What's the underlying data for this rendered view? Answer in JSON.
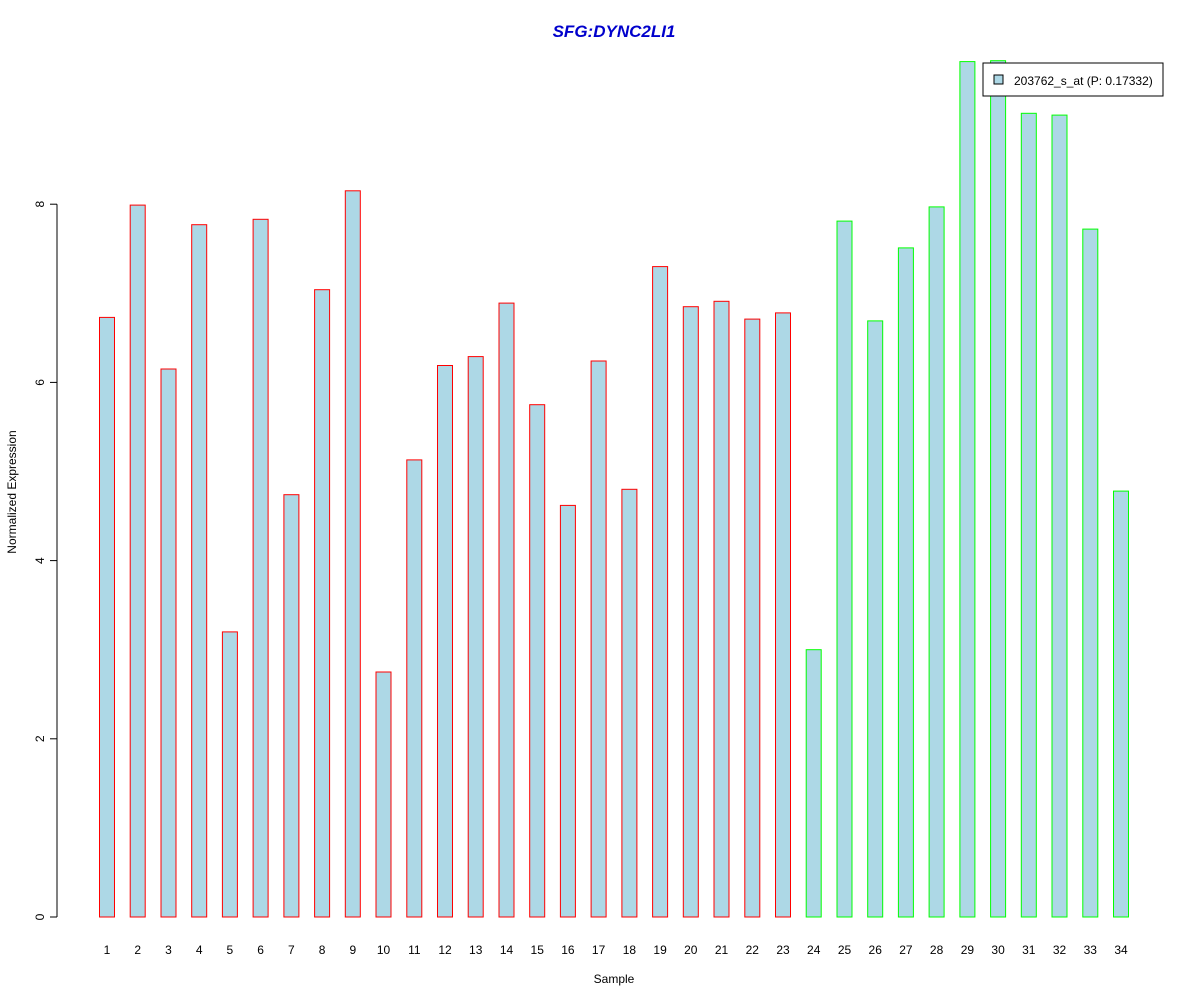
{
  "chart_data": {
    "type": "bar",
    "title": "SFG:DYNC2LI1",
    "xlabel": "Sample",
    "ylabel": "Normalized Expression",
    "ylim": [
      0,
      9.6
    ],
    "yticks": [
      "0",
      "2",
      "4",
      "6",
      "8"
    ],
    "grid": false,
    "legend": {
      "position": "top-right",
      "label": "203762_s_at (P: 0.17332)"
    },
    "categories": [
      "1",
      "2",
      "3",
      "4",
      "5",
      "6",
      "7",
      "8",
      "9",
      "10",
      "11",
      "12",
      "13",
      "14",
      "15",
      "16",
      "17",
      "18",
      "19",
      "20",
      "21",
      "22",
      "23",
      "24",
      "25",
      "26",
      "27",
      "28",
      "29",
      "30",
      "31",
      "32",
      "33",
      "34"
    ],
    "values": [
      6.73,
      7.99,
      6.15,
      7.77,
      3.2,
      7.83,
      4.74,
      7.04,
      8.15,
      2.75,
      5.13,
      6.19,
      6.29,
      6.89,
      5.75,
      4.62,
      6.24,
      4.8,
      7.3,
      6.85,
      6.91,
      6.71,
      6.78,
      3.0,
      7.81,
      6.69,
      7.51,
      7.97,
      9.6,
      9.61,
      9.02,
      9.0,
      7.72,
      4.78
    ],
    "groups": [
      "case",
      "case",
      "case",
      "case",
      "case",
      "case",
      "case",
      "case",
      "case",
      "case",
      "case",
      "case",
      "case",
      "case",
      "case",
      "case",
      "case",
      "case",
      "case",
      "case",
      "case",
      "case",
      "case",
      "control",
      "control",
      "control",
      "control",
      "control",
      "control",
      "control",
      "control",
      "control",
      "control",
      "control"
    ]
  },
  "colors": {
    "title": "#0000CC",
    "bar_fill": "#ADD8E6",
    "case_border": "#FF0000",
    "control_border": "#00FF00",
    "axis": "#000000"
  }
}
